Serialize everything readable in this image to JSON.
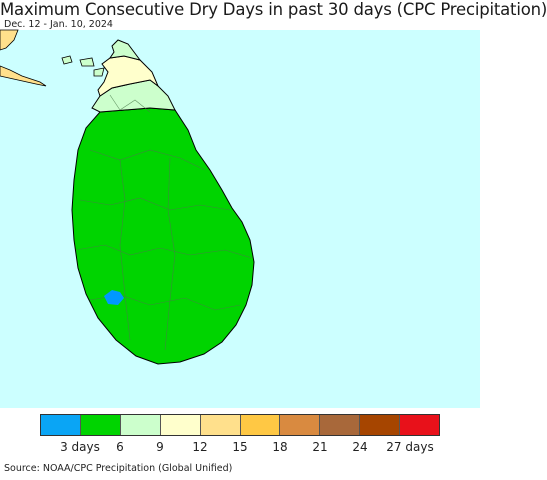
{
  "header": {
    "title": "Maximum Consecutive Dry Days in past 30 days (CPC Precipitation)",
    "date_range": "Dec. 12 - Jan. 10, 2024"
  },
  "map": {
    "colors": {
      "ocean": "#ccffff",
      "mainland_neighbor": "#ffe08c",
      "island_green": "#00d400",
      "north_light_green": "#ccffcc",
      "north_cream": "#ffffcc",
      "blue_patch": "#0098ff",
      "boundary": "#6a8a6a",
      "coast": "#000000"
    }
  },
  "legend": {
    "colors": [
      "#0aa5f5",
      "#00d400",
      "#ccffcc",
      "#ffffcc",
      "#ffe08c",
      "#ffc844",
      "#d98a40",
      "#a8683a",
      "#a64500",
      "#e8111a"
    ],
    "labels": [
      "3 days",
      "6",
      "9",
      "12",
      "15",
      "18",
      "21",
      "24",
      "27 days"
    ]
  },
  "footer": {
    "source": "Source: NOAA/CPC Precipitation (Global Unified)"
  }
}
